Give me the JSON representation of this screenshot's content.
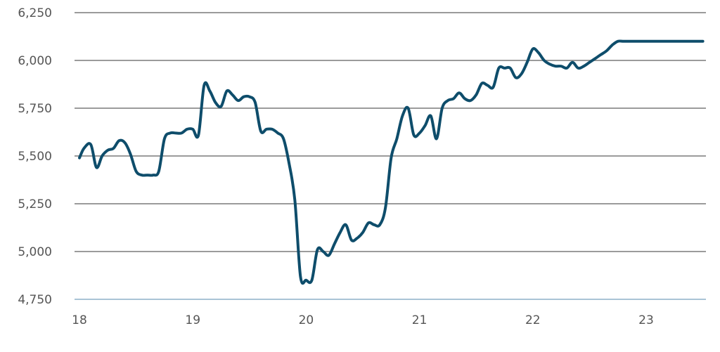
{
  "chart_data": {
    "type": "line",
    "title": "",
    "xlabel": "",
    "ylabel": "",
    "xlim": [
      18,
      23.55
    ],
    "ylim": [
      4750,
      6250
    ],
    "x_ticks": [
      {
        "value": 18,
        "label": "18"
      },
      {
        "value": 19,
        "label": "19"
      },
      {
        "value": 20,
        "label": "20"
      },
      {
        "value": 21,
        "label": "21"
      },
      {
        "value": 22,
        "label": "22"
      },
      {
        "value": 23,
        "label": "23"
      }
    ],
    "y_ticks": [
      {
        "value": 6250,
        "label": "6,250"
      },
      {
        "value": 6000,
        "label": "6,000"
      },
      {
        "value": 5750,
        "label": "5,750"
      },
      {
        "value": 5500,
        "label": "5,500"
      },
      {
        "value": 5250,
        "label": "5,250"
      },
      {
        "value": 5000,
        "label": "5,000"
      },
      {
        "value": 4750,
        "label": "4,750"
      }
    ],
    "grid": "horizontal",
    "colors": {
      "line": "#0e4d6b",
      "grid": "#7a7a7a",
      "baseline": "#a9c4d6",
      "label": "#555555"
    },
    "series": [
      {
        "x": [
          18.0,
          18.04,
          18.1,
          18.15,
          18.2,
          18.25,
          18.3,
          18.35,
          18.4,
          18.45,
          18.5,
          18.55,
          18.6,
          18.65,
          18.7,
          18.75,
          18.8,
          18.85,
          18.9,
          18.95,
          19.0,
          19.05,
          19.1,
          19.15,
          19.2,
          19.25,
          19.3,
          19.35,
          19.4,
          19.45,
          19.5,
          19.55,
          19.6,
          19.65,
          19.7,
          19.75,
          19.8,
          19.85,
          19.9,
          19.95,
          20.0,
          20.05,
          20.1,
          20.15,
          20.2,
          20.25,
          20.3,
          20.35,
          20.4,
          20.45,
          20.5,
          20.55,
          20.6,
          20.65,
          20.7,
          20.75,
          20.8,
          20.85,
          20.9,
          20.95,
          21.0,
          21.05,
          21.1,
          21.15,
          21.2,
          21.25,
          21.3,
          21.35,
          21.4,
          21.45,
          21.5,
          21.55,
          21.6,
          21.65,
          21.7,
          21.75,
          21.8,
          21.85,
          21.9,
          21.95,
          22.0,
          22.05,
          22.1,
          22.15,
          22.2,
          22.25,
          22.3,
          22.35,
          22.4,
          22.45,
          22.5,
          22.55,
          22.6,
          22.65,
          22.7,
          22.75,
          22.8,
          22.85,
          22.9,
          22.95,
          23.0,
          23.05,
          23.1,
          23.15,
          23.2,
          23.25,
          23.3,
          23.35,
          23.4,
          23.45,
          23.5
        ],
        "y": [
          5490,
          5540,
          5560,
          5440,
          5500,
          5530,
          5540,
          5580,
          5570,
          5510,
          5420,
          5400,
          5400,
          5400,
          5420,
          5590,
          5620,
          5620,
          5620,
          5640,
          5640,
          5610,
          5870,
          5840,
          5780,
          5760,
          5840,
          5820,
          5790,
          5810,
          5810,
          5780,
          5630,
          5640,
          5640,
          5620,
          5590,
          5460,
          5270,
          4870,
          4850,
          4850,
          5010,
          5000,
          4980,
          5040,
          5100,
          5140,
          5060,
          5070,
          5100,
          5150,
          5140,
          5140,
          5230,
          5490,
          5590,
          5710,
          5750,
          5610,
          5620,
          5660,
          5710,
          5590,
          5750,
          5790,
          5800,
          5830,
          5800,
          5790,
          5820,
          5880,
          5870,
          5860,
          5960,
          5960,
          5960,
          5910,
          5930,
          5990,
          6060,
          6040,
          6000,
          5980,
          5970,
          5970,
          5960,
          5990,
          5960,
          5970,
          5990,
          6010,
          6030,
          6050,
          6080,
          6100,
          6100,
          6100,
          6100,
          6100,
          6100,
          6100,
          6100,
          6100,
          6100,
          6100,
          6100,
          6100,
          6100,
          6100,
          6100
        ]
      }
    ]
  }
}
